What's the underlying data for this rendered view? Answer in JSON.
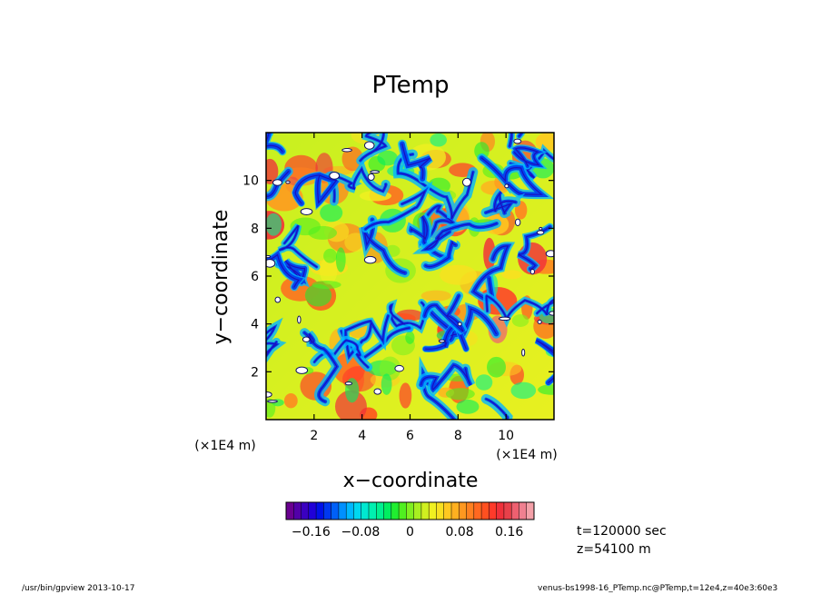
{
  "chart_data": {
    "type": "heatmap",
    "title": "PTemp",
    "xlabel": "x−coordinate",
    "ylabel": "y−coordinate",
    "x_unit_label": "(×1E4 m)",
    "x_unit_label_2": "(×1E4 m)",
    "y_unit_label": "(×1E4 m)",
    "xlim": [
      0,
      12
    ],
    "ylim": [
      0,
      12
    ],
    "xticks": [
      "2",
      "4",
      "6",
      "8",
      "10"
    ],
    "yticks": [
      "2",
      "4",
      "6",
      "8",
      "10"
    ],
    "xtick_values": [
      2,
      4,
      6,
      8,
      10
    ],
    "ytick_values": [
      2,
      4,
      6,
      8,
      10
    ],
    "colorbar": {
      "range": [
        -0.2,
        0.2
      ],
      "tick_labels": [
        "−0.16",
        "−0.08",
        "0",
        "0.08",
        "0.16"
      ],
      "tick_values": [
        -0.16,
        -0.08,
        0,
        0.08,
        0.16
      ],
      "colors": [
        "#6a0090",
        "#5200a8",
        "#3a00c0",
        "#2000d8",
        "#0010e8",
        "#0038f0",
        "#0060f8",
        "#0090ff",
        "#00b8ff",
        "#00d8f0",
        "#00e8d0",
        "#00f0b0",
        "#00f090",
        "#00ee60",
        "#20ee30",
        "#50f020",
        "#80f020",
        "#a8f020",
        "#d0f020",
        "#f0f020",
        "#f8e020",
        "#ffc820",
        "#ffb020",
        "#ff9820",
        "#ff8020",
        "#ff6820",
        "#ff5020",
        "#ff3a2a",
        "#f0303a",
        "#e8404a",
        "#ee6070",
        "#f08090",
        "#f4a0a8"
      ]
    },
    "annotations": [
      "t=120000 sec",
      "z=54100 m"
    ]
  },
  "footer": {
    "left": "/usr/bin/gpview   2013-10-17",
    "right": "venus-bs1998-16_PTemp.nc@PTemp,t=12e4,z=40e3:60e3"
  }
}
